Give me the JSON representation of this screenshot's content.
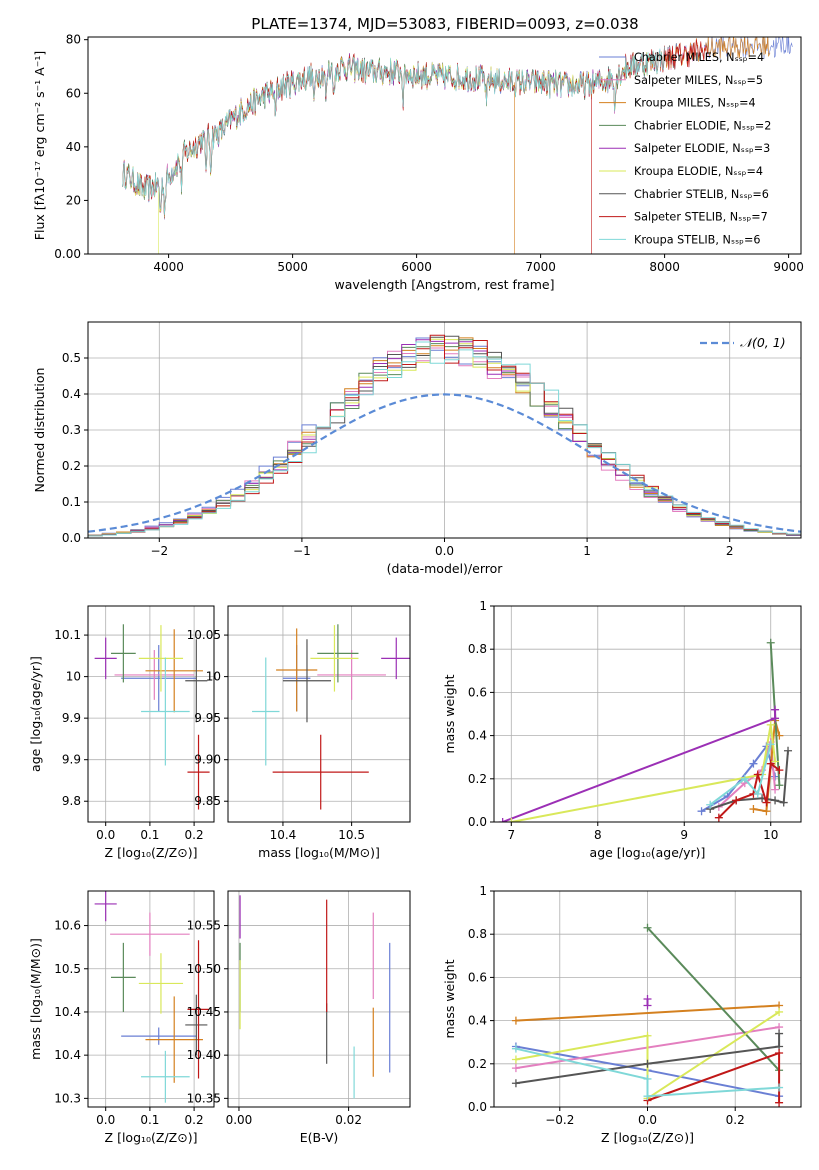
{
  "figure_title": "PLATE=1374, MJD=53083, FIBERID=0093, z=0.038",
  "colors": {
    "models": [
      "#6a7fd4",
      "#e37fbf",
      "#d4801f",
      "#5a8a5a",
      "#9b2fb5",
      "#d9e85a",
      "#555555",
      "#c01818",
      "#7fd8d8"
    ],
    "gaussian": "#5b8bd6",
    "grid": "#b0b0b0"
  },
  "chart_data": [
    {
      "id": "spectrum",
      "type": "line",
      "title": "",
      "xlabel": "wavelength [Angstrom, rest frame]",
      "ylabel": "Flux [fλ10⁻¹⁷ erg cm⁻² s⁻¹ A⁻¹]",
      "xlim": [
        3350,
        9100
      ],
      "ylim": [
        0,
        81
      ],
      "xticks": [
        4000,
        5000,
        6000,
        7000,
        8000,
        9000
      ],
      "yticks": [
        0,
        20,
        40,
        60,
        80
      ],
      "grid": false,
      "legend": "top-right",
      "legend_entries": [
        "Chabrier MILES, Nₛₛₚ=4",
        "Salpeter MILES, Nₛₛₚ=5",
        "Kroupa MILES, Nₛₛₚ=4",
        "Chabrier ELODIE, Nₛₛₚ=2",
        "Salpeter ELODIE, Nₛₛₚ=3",
        "Kroupa ELODIE, Nₛₛₚ=4",
        "Chabrier STELIB, Nₛₛₚ=6",
        "Salpeter STELIB, Nₛₛₚ=7",
        "Kroupa STELIB, Nₛₛₚ=6"
      ],
      "continuum_x": [
        3650,
        3800,
        3950,
        4100,
        4250,
        4400,
        4600,
        4800,
        5000,
        5200,
        5400,
        5600,
        5800,
        6000,
        6200,
        6400,
        6600,
        6800,
        7000,
        7200,
        7400,
        7600,
        7700,
        7800,
        7900,
        8000,
        8200,
        8400,
        8600,
        8800,
        9000
      ],
      "continuum_y": [
        30,
        24,
        26,
        36,
        42,
        45,
        54,
        60,
        64,
        67,
        70,
        68,
        68,
        67,
        66,
        66,
        65,
        64,
        64,
        63,
        63,
        66,
        70,
        71,
        72,
        73,
        75,
        77,
        78,
        78,
        78
      ],
      "model_ranges": [
        [
          3630,
          9030
        ],
        [
          3630,
          8350
        ],
        [
          3630,
          8850
        ],
        [
          3630,
          7900
        ],
        [
          3630,
          7900
        ],
        [
          3630,
          7900
        ],
        [
          3630,
          8100
        ],
        [
          3630,
          8350
        ],
        [
          3630,
          8000
        ]
      ],
      "drops": [
        {
          "model": 5,
          "x": 3920
        },
        {
          "model": 2,
          "x": 6790
        },
        {
          "model": 7,
          "x": 7410
        }
      ]
    },
    {
      "id": "residuals",
      "type": "histogram",
      "xlabel": "(data-model)/error",
      "ylabel": "Normed distribution",
      "xlim": [
        -2.5,
        2.5
      ],
      "ylim": [
        0,
        0.6
      ],
      "xticks": [
        -2,
        -1,
        0,
        1,
        2
      ],
      "yticks": [
        0.0,
        0.1,
        0.2,
        0.3,
        0.4,
        0.5
      ],
      "bin_width": 0.1,
      "grid": true,
      "legend": "top-right",
      "gaussian_label": "𝒩(0, 1)"
    },
    {
      "id": "age_vs_Z",
      "type": "scatter",
      "xlabel": "Z [log₁₀(Z/Z⊙)]",
      "ylabel": "age  [log₁₀(age/yr)]",
      "xlim": [
        -0.04,
        0.245
      ],
      "ylim": [
        9.825,
        10.085
      ],
      "xticks": [
        0.0,
        0.1,
        0.2
      ],
      "yticks": [
        9.85,
        9.9,
        9.95,
        10.0,
        10.05
      ],
      "grid": true,
      "points": [
        {
          "x": 0.12,
          "y": 9.998,
          "xerr": 0.085,
          "yerr": 0.04
        },
        {
          "x": 0.11,
          "y": 10.002,
          "xerr": 0.09,
          "yerr": 0.03
        },
        {
          "x": 0.155,
          "y": 10.007,
          "xerr": 0.065,
          "yerr": 0.05
        },
        {
          "x": 0.04,
          "y": 10.028,
          "xerr": 0.028,
          "yerr": 0.035
        },
        {
          "x": 0.0,
          "y": 10.022,
          "xerr": 0.025,
          "yerr": 0.025
        },
        {
          "x": 0.125,
          "y": 10.022,
          "xerr": 0.05,
          "yerr": 0.04
        },
        {
          "x": 0.205,
          "y": 9.995,
          "xerr": 0.025,
          "yerr": 0.05
        },
        {
          "x": 0.21,
          "y": 9.885,
          "xerr": 0.025,
          "yerr": 0.045
        },
        {
          "x": 0.135,
          "y": 9.958,
          "xerr": 0.055,
          "yerr": 0.065
        }
      ]
    },
    {
      "id": "age_vs_mass",
      "type": "scatter",
      "xlabel": "mass [log₁₀(M/M⊙)]",
      "ylabel": "",
      "xlim": [
        10.32,
        10.585
      ],
      "ylim": [
        9.825,
        10.085
      ],
      "xticks": [
        10.4,
        10.5
      ],
      "yticks": [
        9.85,
        9.9,
        9.95,
        10.0,
        10.05
      ],
      "grid": true,
      "points": [
        {
          "x": 10.42,
          "y": 9.998,
          "xerr": 0.02,
          "yerr": 0.04
        },
        {
          "x": 10.5,
          "y": 10.002,
          "xerr": 0.05,
          "yerr": 0.03
        },
        {
          "x": 10.42,
          "y": 10.008,
          "xerr": 0.03,
          "yerr": 0.05
        },
        {
          "x": 10.48,
          "y": 10.028,
          "xerr": 0.03,
          "yerr": 0.035
        },
        {
          "x": 10.565,
          "y": 10.022,
          "xerr": 0.022,
          "yerr": 0.025
        },
        {
          "x": 10.475,
          "y": 10.022,
          "xerr": 0.035,
          "yerr": 0.04
        },
        {
          "x": 10.435,
          "y": 9.995,
          "xerr": 0.035,
          "yerr": 0.05
        },
        {
          "x": 10.455,
          "y": 9.885,
          "xerr": 0.07,
          "yerr": 0.045
        },
        {
          "x": 10.375,
          "y": 9.958,
          "xerr": 0.02,
          "yerr": 0.065
        }
      ]
    },
    {
      "id": "massweight_vs_age",
      "type": "line",
      "xlabel": "age  [log₁₀(age/yr)]",
      "ylabel": "mass weight",
      "xlim": [
        6.8,
        10.35
      ],
      "ylim": [
        0,
        1.0
      ],
      "xticks": [
        7,
        8,
        9,
        10
      ],
      "yticks": [
        0.0,
        0.2,
        0.4,
        0.6,
        0.8,
        1.0
      ],
      "grid": true,
      "series": [
        {
          "x": [
            9.2,
            9.5,
            9.8,
            9.95,
            10.05
          ],
          "y": [
            0.05,
            0.12,
            0.27,
            0.35,
            0.21
          ]
        },
        {
          "x": [
            9.4,
            9.7,
            9.9,
            10.0,
            10.05
          ],
          "y": [
            0.07,
            0.18,
            0.24,
            0.37,
            0.15
          ]
        },
        {
          "x": [
            9.8,
            9.95,
            10.05,
            10.1
          ],
          "y": [
            0.06,
            0.05,
            0.47,
            0.4
          ]
        },
        {
          "x": [
            10.0,
            10.1
          ],
          "y": [
            0.83,
            0.17
          ]
        },
        {
          "x": [
            6.9,
            10.05,
            10.05
          ],
          "y": [
            0.0,
            0.48,
            0.52
          ]
        },
        {
          "x": [
            7.0,
            9.9,
            10.0,
            10.05
          ],
          "y": [
            0.0,
            0.22,
            0.45,
            0.28
          ]
        },
        {
          "x": [
            9.3,
            9.6,
            9.9,
            10.05,
            10.15,
            10.2
          ],
          "y": [
            0.06,
            0.1,
            0.11,
            0.1,
            0.09,
            0.33
          ]
        },
        {
          "x": [
            9.4,
            9.6,
            9.8,
            9.85,
            9.95,
            10.0,
            10.1
          ],
          "y": [
            0.02,
            0.1,
            0.13,
            0.22,
            0.09,
            0.27,
            0.24
          ]
        },
        {
          "x": [
            9.3,
            9.7,
            9.85,
            10.0
          ],
          "y": [
            0.08,
            0.2,
            0.13,
            0.36
          ]
        }
      ]
    },
    {
      "id": "mass_vs_Z",
      "type": "scatter",
      "xlabel": "Z [log₁₀(Z/Z⊙)]",
      "ylabel": "mass [log₁₀(M/M⊙)]",
      "xlim": [
        -0.04,
        0.245
      ],
      "ylim": [
        10.34,
        10.59
      ],
      "xticks": [
        0.0,
        0.1,
        0.2
      ],
      "yticks": [
        10.35,
        10.4,
        10.45,
        10.5,
        10.55
      ],
      "grid": true,
      "points": [
        {
          "x": 0.12,
          "y": 10.422,
          "xerr": 0.085,
          "yerr": 0.01
        },
        {
          "x": 0.1,
          "y": 10.54,
          "xerr": 0.09,
          "yerr": 0.025
        },
        {
          "x": 0.155,
          "y": 10.418,
          "xerr": 0.065,
          "yerr": 0.05
        },
        {
          "x": 0.04,
          "y": 10.49,
          "xerr": 0.028,
          "yerr": 0.04
        },
        {
          "x": 0.0,
          "y": 10.575,
          "xerr": 0.025,
          "yerr": 0.02
        },
        {
          "x": 0.125,
          "y": 10.483,
          "xerr": 0.05,
          "yerr": 0.035
        },
        {
          "x": 0.205,
          "y": 10.435,
          "xerr": 0.025,
          "yerr": 0.035
        },
        {
          "x": 0.21,
          "y": 10.453,
          "xerr": 0.025,
          "yerr": 0.08
        },
        {
          "x": 0.135,
          "y": 10.375,
          "xerr": 0.055,
          "yerr": 0.03
        }
      ]
    },
    {
      "id": "mass_vs_EBV",
      "type": "errorbar",
      "xlabel": "E(B-V)",
      "ylabel": "",
      "xlim": [
        -0.002,
        0.0312
      ],
      "ylim": [
        10.34,
        10.59
      ],
      "xticks": [
        0.0,
        0.02
      ],
      "yticks": [
        10.35,
        10.4,
        10.45,
        10.5,
        10.55
      ],
      "grid": true,
      "points": [
        {
          "x": 0.0275,
          "y": 10.455,
          "yerr": 0.075
        },
        {
          "x": 0.0245,
          "y": 10.515,
          "yerr": 0.05
        },
        {
          "x": 0.0245,
          "y": 10.415,
          "yerr": 0.04
        },
        {
          "x": 0.0002,
          "y": 10.49,
          "yerr": 0.04
        },
        {
          "x": 0.0002,
          "y": 10.56,
          "yerr": 0.025
        },
        {
          "x": 0.0002,
          "y": 10.47,
          "yerr": 0.04
        },
        {
          "x": 0.016,
          "y": 10.425,
          "yerr": 0.035
        },
        {
          "x": 0.016,
          "y": 10.515,
          "yerr": 0.065
        },
        {
          "x": 0.021,
          "y": 10.38,
          "yerr": 0.03
        }
      ]
    },
    {
      "id": "massweight_vs_Z",
      "type": "line",
      "xlabel": "Z [log₁₀(Z/Z⊙)]",
      "ylabel": "mass weight",
      "xlim": [
        -0.35,
        0.35
      ],
      "ylim": [
        0,
        1.0
      ],
      "xticks": [
        -0.2,
        0.0,
        0.2
      ],
      "yticks": [
        0.0,
        0.2,
        0.4,
        0.6,
        0.8,
        1.0
      ],
      "grid": true,
      "series": [
        {
          "x": [
            -0.3,
            0.0,
            0.0,
            0.3
          ],
          "y": [
            0.28,
            0.17,
            0.17,
            0.05
          ]
        },
        {
          "x": [
            -0.3,
            0.3
          ],
          "y": [
            0.18,
            0.37
          ]
        },
        {
          "x": [
            -0.3,
            0.3
          ],
          "y": [
            0.4,
            0.47
          ]
        },
        {
          "x": [
            0.0,
            0.3
          ],
          "y": [
            0.83,
            0.17
          ]
        },
        {
          "x": [
            0.0,
            0.0
          ],
          "y": [
            0.5,
            0.47
          ]
        },
        {
          "x": [
            -0.3,
            0.0,
            0.0,
            0.3
          ],
          "y": [
            0.22,
            0.33,
            0.04,
            0.44
          ]
        },
        {
          "x": [
            -0.3,
            0.0,
            0.3,
            0.3
          ],
          "y": [
            0.11,
            0.2,
            0.28,
            0.34
          ]
        },
        {
          "x": [
            0.0,
            0.3,
            0.3
          ],
          "y": [
            0.03,
            0.25,
            0.02
          ]
        },
        {
          "x": [
            -0.3,
            0.0,
            0.0,
            0.3
          ],
          "y": [
            0.27,
            0.13,
            0.05,
            0.09
          ]
        }
      ]
    }
  ]
}
